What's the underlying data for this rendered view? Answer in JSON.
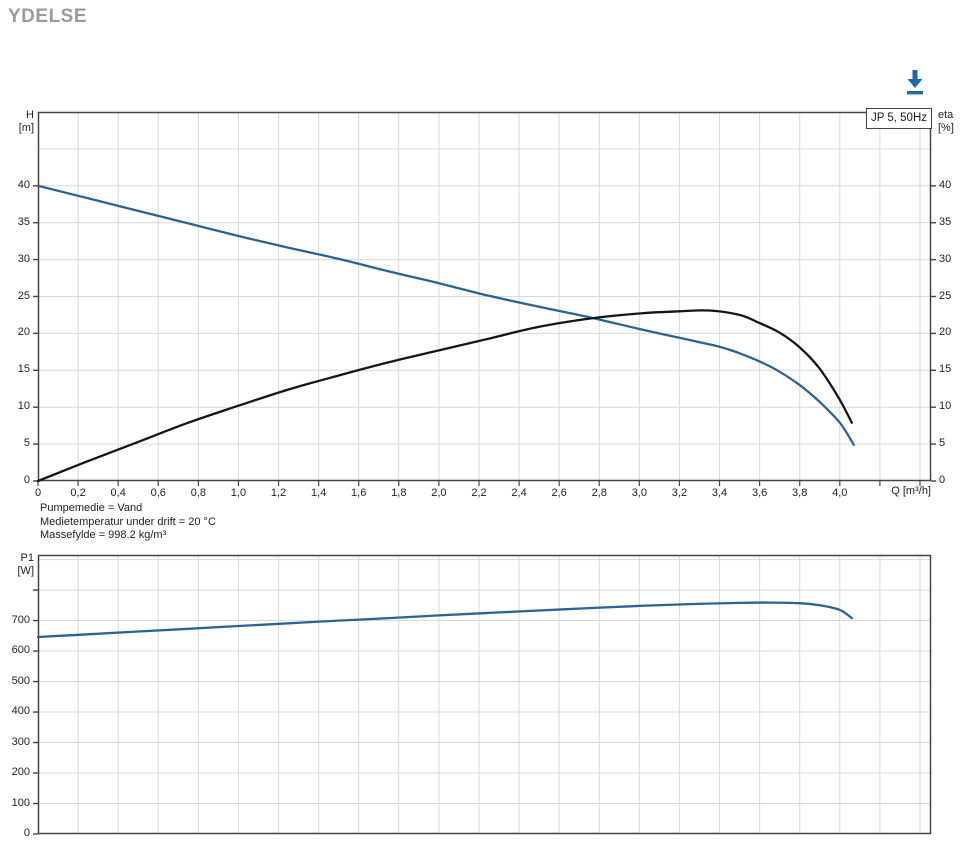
{
  "page": {
    "title": "YDELSE"
  },
  "toolbar": {
    "download_icon_color": "#1a6aad"
  },
  "colors": {
    "curve_blue": "#2a6496",
    "curve_black": "#161616",
    "grid": "#d9d9d9",
    "frame": "#454545"
  },
  "chart_data": [
    {
      "type": "line",
      "title": "JP 5, 50Hz",
      "x_axis": {
        "label": "Q [m³/h]",
        "min": 0,
        "max": 4.455,
        "grid_step": 0.2,
        "ticks": [
          {
            "v": 0,
            "t": "0"
          },
          {
            "v": 0.2,
            "t": "0,2"
          },
          {
            "v": 0.4,
            "t": "0,4"
          },
          {
            "v": 0.6,
            "t": "0,6"
          },
          {
            "v": 0.8,
            "t": "0,8"
          },
          {
            "v": 1.0,
            "t": "1,0"
          },
          {
            "v": 1.2,
            "t": "1,2"
          },
          {
            "v": 1.4,
            "t": "1,4"
          },
          {
            "v": 1.6,
            "t": "1,6"
          },
          {
            "v": 1.8,
            "t": "1,8"
          },
          {
            "v": 2.0,
            "t": "2,0"
          },
          {
            "v": 2.2,
            "t": "2,2"
          },
          {
            "v": 2.4,
            "t": "2,4"
          },
          {
            "v": 2.6,
            "t": "2,6"
          },
          {
            "v": 2.8,
            "t": "2,8"
          },
          {
            "v": 3.0,
            "t": "3,0"
          },
          {
            "v": 3.2,
            "t": "3,2"
          },
          {
            "v": 3.4,
            "t": "3,4"
          },
          {
            "v": 3.6,
            "t": "3,6"
          },
          {
            "v": 3.8,
            "t": "3,8"
          },
          {
            "v": 4.0,
            "t": "4,0"
          }
        ]
      },
      "y_axis_left": {
        "name": "H",
        "unit": "[m]",
        "min": 0,
        "max": 50,
        "grid_step": 5,
        "ticks": [
          {
            "v": 0,
            "t": "0"
          },
          {
            "v": 5,
            "t": "5"
          },
          {
            "v": 10,
            "t": "10"
          },
          {
            "v": 15,
            "t": "15"
          },
          {
            "v": 20,
            "t": "20"
          },
          {
            "v": 25,
            "t": "25"
          },
          {
            "v": 30,
            "t": "30"
          },
          {
            "v": 35,
            "t": "35"
          },
          {
            "v": 40,
            "t": "40"
          }
        ]
      },
      "y_axis_right": {
        "name": "eta",
        "unit": "[%]",
        "min": 0,
        "max": 50,
        "ticks": [
          {
            "v": 0,
            "t": "0"
          },
          {
            "v": 5,
            "t": "5"
          },
          {
            "v": 10,
            "t": "10"
          },
          {
            "v": 15,
            "t": "15"
          },
          {
            "v": 20,
            "t": "20"
          },
          {
            "v": 25,
            "t": "25"
          },
          {
            "v": 30,
            "t": "30"
          },
          {
            "v": 35,
            "t": "35"
          },
          {
            "v": 40,
            "t": "40"
          }
        ]
      },
      "series": [
        {
          "name": "head-curve",
          "axis": "left",
          "color": "#2a6496",
          "points": [
            [
              0,
              40
            ],
            [
              0.25,
              38.3
            ],
            [
              0.5,
              36.6
            ],
            [
              0.75,
              34.9
            ],
            [
              1,
              33.2
            ],
            [
              1.25,
              31.6
            ],
            [
              1.5,
              30.1
            ],
            [
              1.75,
              28.4
            ],
            [
              2,
              26.8
            ],
            [
              2.25,
              25.1
            ],
            [
              2.5,
              23.6
            ],
            [
              2.75,
              22.2
            ],
            [
              3,
              20.6
            ],
            [
              3.2,
              19.4
            ],
            [
              3.4,
              18.2
            ],
            [
              3.5,
              17.3
            ],
            [
              3.6,
              16.2
            ],
            [
              3.7,
              14.8
            ],
            [
              3.8,
              13.0
            ],
            [
              3.9,
              10.7
            ],
            [
              4.0,
              7.9
            ],
            [
              4.07,
              4.9
            ]
          ]
        },
        {
          "name": "efficiency-curve",
          "axis": "right",
          "color": "#161616",
          "points": [
            [
              0,
              0
            ],
            [
              0.25,
              2.7
            ],
            [
              0.5,
              5.3
            ],
            [
              0.75,
              7.9
            ],
            [
              1,
              10.2
            ],
            [
              1.25,
              12.4
            ],
            [
              1.5,
              14.3
            ],
            [
              1.75,
              16.1
            ],
            [
              2,
              17.7
            ],
            [
              2.25,
              19.3
            ],
            [
              2.5,
              20.9
            ],
            [
              2.75,
              22.0
            ],
            [
              3,
              22.7
            ],
            [
              3.2,
              23.0
            ],
            [
              3.35,
              23.1
            ],
            [
              3.5,
              22.5
            ],
            [
              3.6,
              21.4
            ],
            [
              3.7,
              20.1
            ],
            [
              3.8,
              18.1
            ],
            [
              3.9,
              15.2
            ],
            [
              4.0,
              11.0
            ],
            [
              4.06,
              7.9
            ]
          ]
        }
      ],
      "annotations": [
        "Pumpemedie = Vand",
        "Medietemperatur under drift = 20 °C",
        "Massefylde = 998.2 kg/m³"
      ]
    },
    {
      "type": "line",
      "x_axis": {
        "min": 0,
        "max": 4.455,
        "grid_step": 0.2,
        "ticks": []
      },
      "y_axis_left": {
        "name": "P1",
        "unit": "[W]",
        "min": 0,
        "max": 915,
        "grid_step": 100,
        "ticks": [
          {
            "v": 0,
            "t": "0"
          },
          {
            "v": 100,
            "t": "100"
          },
          {
            "v": 200,
            "t": "200"
          },
          {
            "v": 300,
            "t": "300"
          },
          {
            "v": 400,
            "t": "400"
          },
          {
            "v": 500,
            "t": "500"
          },
          {
            "v": 600,
            "t": "600"
          },
          {
            "v": 700,
            "t": "700"
          },
          {
            "v": 800,
            "t": ""
          }
        ]
      },
      "series": [
        {
          "name": "power-curve",
          "axis": "left",
          "color": "#2a6496",
          "points": [
            [
              0,
              646
            ],
            [
              0.25,
              655
            ],
            [
              0.5,
              664
            ],
            [
              0.75,
              673
            ],
            [
              1,
              682
            ],
            [
              1.25,
              691
            ],
            [
              1.5,
              700
            ],
            [
              1.75,
              708
            ],
            [
              2,
              717
            ],
            [
              2.25,
              725
            ],
            [
              2.5,
              733
            ],
            [
              2.75,
              741
            ],
            [
              3,
              748
            ],
            [
              3.25,
              754
            ],
            [
              3.5,
              758
            ],
            [
              3.65,
              759
            ],
            [
              3.8,
              757
            ],
            [
              3.9,
              750
            ],
            [
              4.0,
              735
            ],
            [
              4.06,
              708
            ]
          ]
        }
      ]
    }
  ]
}
